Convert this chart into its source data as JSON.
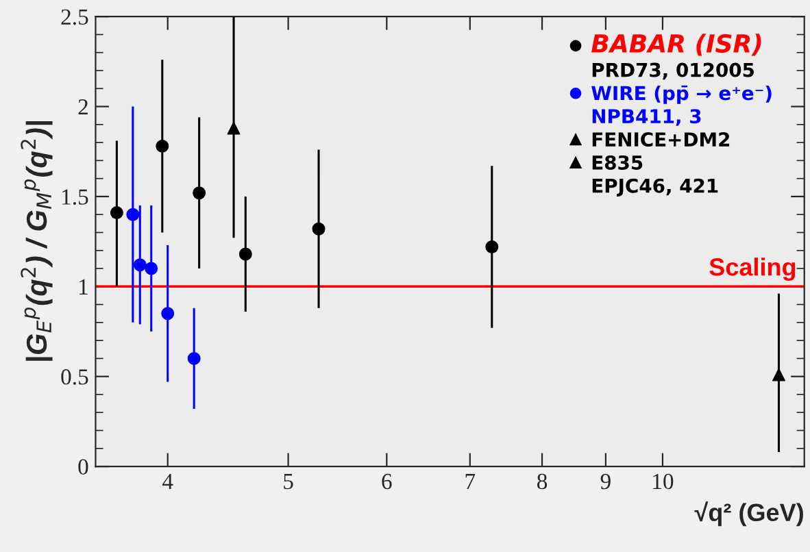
{
  "chart_data": {
    "type": "scatter",
    "xlabel": "√q² (GeV)",
    "ylabel": "|G$_{E}$$^{p}$(q$^{2}$) / G$_{M}$$^{p}$(q$^{2}$)|",
    "log": "x",
    "xlim": [
      3.5,
      13
    ],
    "xticks": [
      4,
      5,
      6,
      7,
      8,
      9,
      10
    ],
    "ylim": [
      0,
      2.5
    ],
    "yticks": [
      0,
      0.5,
      1,
      1.5,
      2,
      2.5
    ],
    "grid": false,
    "legend": "top right",
    "series": [
      {
        "name": "BABAR (ISR)",
        "color": "#000000",
        "marker": "circle",
        "x": [
          3.64,
          3.96,
          4.24,
          4.62,
          5.29,
          7.29
        ],
        "values": [
          1.41,
          1.78,
          1.52,
          1.18,
          1.32,
          1.22
        ],
        "errors": [
          [
            1.0,
            1.81
          ],
          [
            1.3,
            2.26
          ],
          [
            1.1,
            1.94
          ],
          [
            0.86,
            1.5
          ],
          [
            0.88,
            1.76
          ],
          [
            0.77,
            1.67
          ]
        ]
      },
      {
        "name": "WIRE (pp̄ → e⁺e⁻)",
        "color": "#0000ff",
        "marker": "circle",
        "x": [
          3.75,
          3.8,
          3.88,
          4.0,
          4.2
        ],
        "values": [
          1.4,
          1.12,
          1.1,
          0.85,
          0.6
        ],
        "errors": [
          [
            0.8,
            2.0
          ],
          [
            0.79,
            1.45
          ],
          [
            0.75,
            1.45
          ],
          [
            0.47,
            1.23
          ],
          [
            0.32,
            0.88
          ]
        ]
      },
      {
        "name": "FENICE+DM2",
        "color": "#000000",
        "marker": "triangle",
        "x": [
          4.52
        ],
        "values": [
          1.88
        ],
        "errors": [
          [
            1.27,
            2.5
          ]
        ]
      },
      {
        "name": "E835",
        "color": "#000000",
        "marker": "triangle",
        "x": [
          12.4
        ],
        "values": [
          0.51
        ],
        "errors": [
          [
            0.08,
            0.96
          ]
        ]
      }
    ],
    "ref_lines": [
      {
        "axis": "y",
        "value": 1,
        "label": "Scaling",
        "color": "#ff0000"
      }
    ],
    "annotations": [
      "PRD73, 012005",
      "NPB411, 3",
      "EPJC46, 421"
    ]
  }
}
